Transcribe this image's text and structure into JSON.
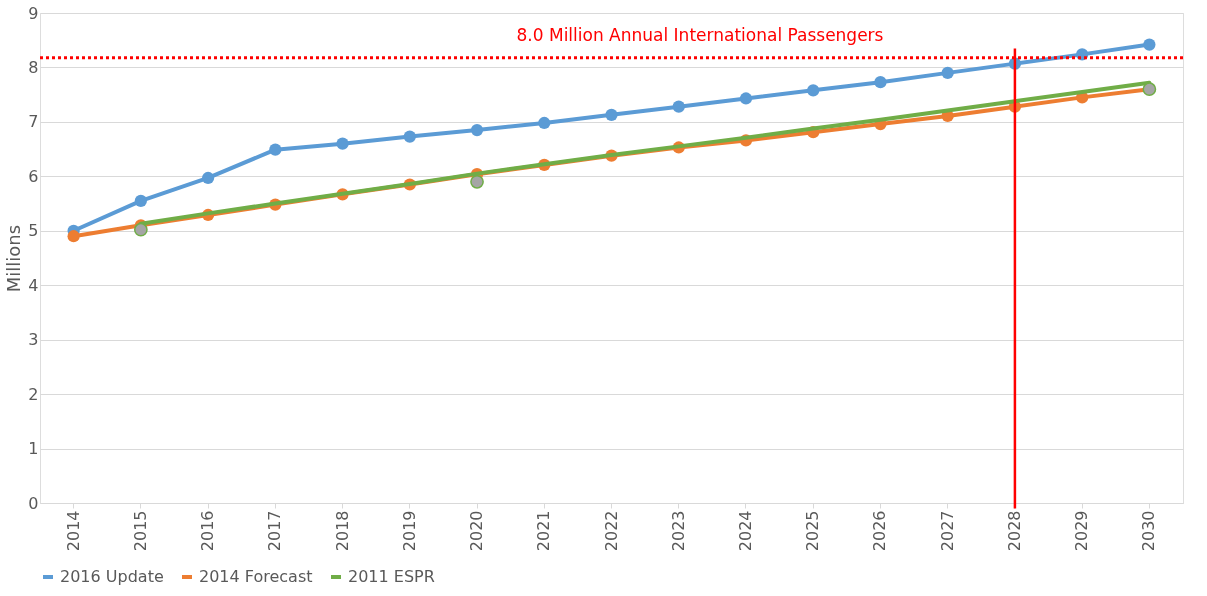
{
  "chart_data": {
    "type": "line",
    "ylabel": "Millions",
    "categories": [
      "2014",
      "2015",
      "2016",
      "2017",
      "2018",
      "2019",
      "2020",
      "2021",
      "2022",
      "2023",
      "2024",
      "2025",
      "2026",
      "2027",
      "2028",
      "2029",
      "2030"
    ],
    "ylim": [
      0,
      9
    ],
    "yticks": [
      0,
      1,
      2,
      3,
      4,
      5,
      6,
      7,
      8,
      9
    ],
    "grid": "y",
    "legend": "bottom",
    "series": [
      {
        "name": "2016 Update",
        "color": "#5b9bd5",
        "marker": "circle",
        "values": [
          5.0,
          5.55,
          5.97,
          6.49,
          6.6,
          6.73,
          6.85,
          6.98,
          7.13,
          7.28,
          7.43,
          7.58,
          7.73,
          7.9,
          8.07,
          8.24,
          8.42
        ]
      },
      {
        "name": "2014 Forecast",
        "color": "#ed7d31",
        "marker": "circle",
        "values": [
          4.9,
          5.1,
          5.29,
          5.48,
          5.67,
          5.85,
          6.04,
          6.21,
          6.38,
          6.53,
          6.66,
          6.81,
          6.96,
          7.11,
          7.28,
          7.45,
          7.6
        ]
      },
      {
        "name": "2011 ESPR",
        "color": "#70ad47",
        "marker": "none",
        "values": [
          null,
          5.13,
          5.32,
          5.5,
          5.68,
          5.86,
          6.05,
          6.22,
          6.39,
          6.55,
          6.71,
          6.88,
          7.04,
          7.21,
          7.38,
          7.55,
          7.72
        ]
      },
      {
        "type": "scatter",
        "color": "#a5a5a5",
        "marker": "circle",
        "values": [
          null,
          5.02,
          null,
          null,
          null,
          null,
          5.9,
          null,
          null,
          null,
          null,
          null,
          null,
          null,
          null,
          null,
          7.6
        ]
      }
    ],
    "ref_lines": [
      {
        "axis": "y",
        "value": 8.18,
        "label": "8.0 Million Annual International Passengers",
        "color": "#ff0000",
        "line_style": "dotted"
      },
      {
        "axis": "x",
        "value": "2028",
        "color": "#ff0000",
        "line_style": "solid"
      }
    ]
  }
}
